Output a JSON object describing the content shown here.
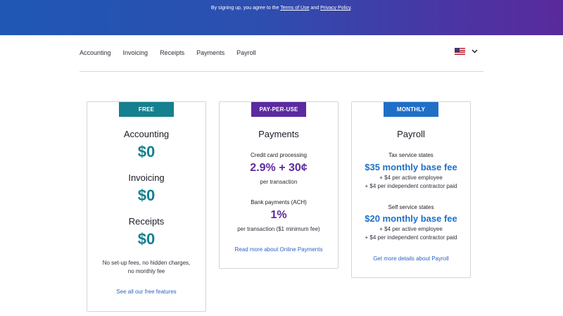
{
  "banner": {
    "prefix": "By signing up, you agree to the ",
    "terms_link": "Terms of Use",
    "middle": " and ",
    "privacy_link": "Privacy Policy",
    "suffix": "."
  },
  "nav": {
    "items": [
      "Accounting",
      "Invoicing",
      "Receipts",
      "Payments",
      "Payroll"
    ],
    "region_icon": "us-flag-icon",
    "dropdown_icon": "chevron-down-icon"
  },
  "colors": {
    "banner_start": "#1f57b5",
    "banner_end": "#5a2a9c",
    "free_badge": "#15808e",
    "ppu_badge": "#5b2aa0",
    "monthly_badge": "#1f6fc8"
  },
  "cards": {
    "free": {
      "badge": "FREE",
      "items": [
        {
          "name": "Accounting",
          "price": "$0"
        },
        {
          "name": "Invoicing",
          "price": "$0"
        },
        {
          "name": "Receipts",
          "price": "$0"
        }
      ],
      "note_line1": "No set-up fees, no hidden charges,",
      "note_line2": "no monthly fee",
      "link": "See all our free features"
    },
    "ppu": {
      "badge": "PAY-PER-USE",
      "title": "Payments",
      "cc_label": "Credit card processing",
      "cc_price": "2.9% + 30¢",
      "cc_unit": "per transaction",
      "ach_label": "Bank payments (ACH)",
      "ach_price": "1%",
      "ach_unit": "per transaction ($1 minimum fee)",
      "link": "Read more about Online Payments"
    },
    "monthly": {
      "badge": "MONTHLY",
      "title": "Payroll",
      "tax_label": "Tax service states",
      "tax_price": "$35 monthly base fee",
      "tax_line1": "+ $4 per active employee",
      "tax_line2": "+ $4 per independent contractor paid",
      "self_label": "Self service states",
      "self_price": "$20 monthly base fee",
      "self_line1": "+ $4 per active employee",
      "self_line2": "+ $4 per independent contractor paid",
      "link": "Get more details about Payroll"
    }
  }
}
